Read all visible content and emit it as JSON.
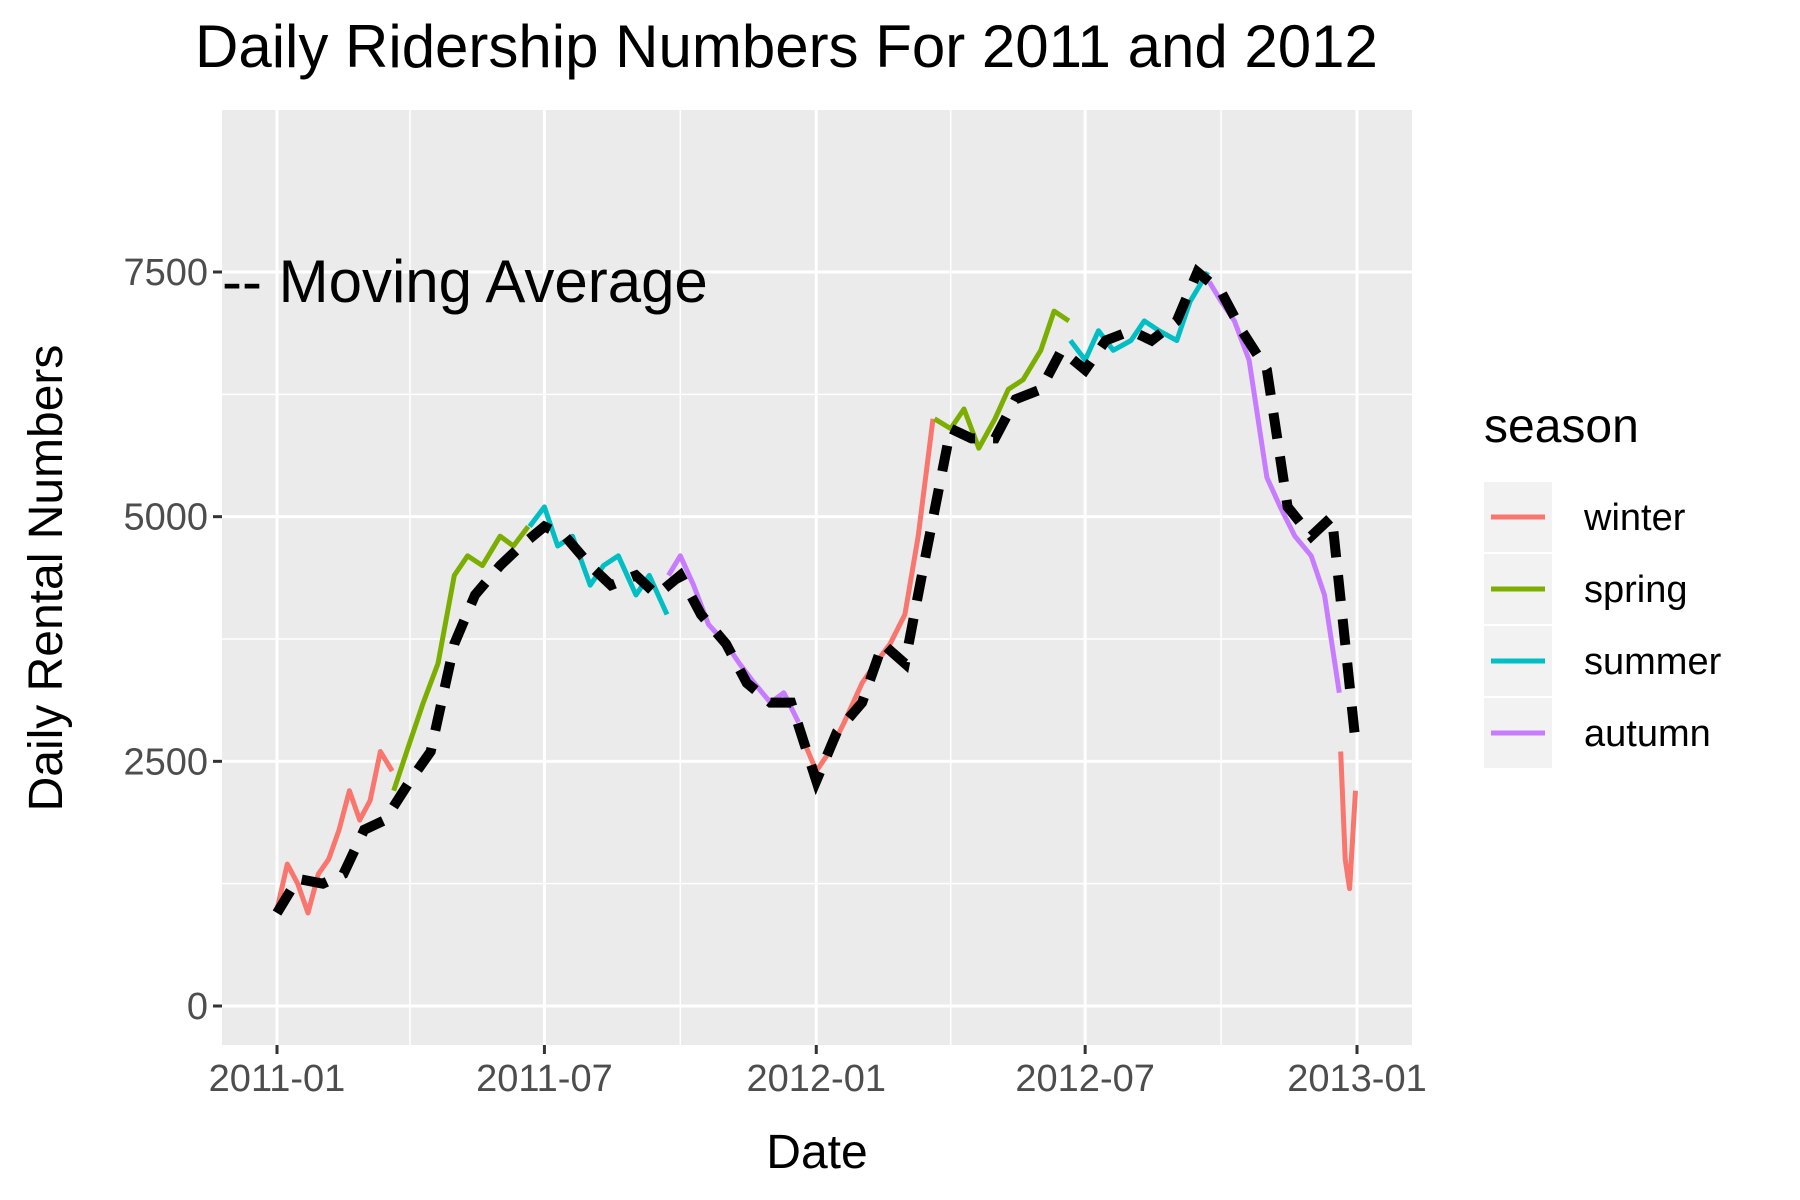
{
  "chart_data": {
    "type": "line",
    "title": "Daily Ridership Numbers For 2011 and 2012",
    "xlabel": "Date",
    "ylabel": "Daily Rental Numbers",
    "x_ticks": [
      "2011-01",
      "2011-07",
      "2012-01",
      "2012-07",
      "2013-01"
    ],
    "y_ticks": [
      "0",
      "2500",
      "5000",
      "7500"
    ],
    "xlim": [
      "2011-01-01",
      "2013-01-01"
    ],
    "ylim": [
      0,
      8700
    ],
    "grid": true,
    "annotation": "-- Moving Average",
    "legend": {
      "title": "season",
      "placement": "right",
      "entries": [
        {
          "label": "winter",
          "color": "#F8766D"
        },
        {
          "label": "spring",
          "color": "#7CAE00"
        },
        {
          "label": "summer",
          "color": "#00BFC4"
        },
        {
          "label": "autumn",
          "color": "#C77CFF"
        }
      ]
    },
    "series": [
      {
        "name": "winter",
        "color": "#F8766D",
        "x": [
          "2011-01-01",
          "2011-01-08",
          "2011-01-15",
          "2011-01-22",
          "2011-01-29",
          "2011-02-05",
          "2011-02-12",
          "2011-02-19",
          "2011-02-26",
          "2011-03-05",
          "2011-03-12",
          "2011-03-20"
        ],
        "y": [
          985,
          1450,
          1250,
          950,
          1350,
          1500,
          1800,
          2200,
          1900,
          2100,
          2600,
          2400
        ]
      },
      {
        "name": "spring",
        "color": "#7CAE00",
        "x": [
          "2011-03-21",
          "2011-04-01",
          "2011-04-10",
          "2011-04-20",
          "2011-05-01",
          "2011-05-10",
          "2011-05-20",
          "2011-06-01",
          "2011-06-10",
          "2011-06-20"
        ],
        "y": [
          2200,
          2700,
          3100,
          3500,
          4400,
          4600,
          4500,
          4800,
          4700,
          4900
        ]
      },
      {
        "name": "summer",
        "color": "#00BFC4",
        "x": [
          "2011-06-21",
          "2011-07-01",
          "2011-07-10",
          "2011-07-20",
          "2011-08-01",
          "2011-08-10",
          "2011-08-20",
          "2011-09-01",
          "2011-09-10",
          "2011-09-22"
        ],
        "y": [
          4900,
          5100,
          4700,
          4800,
          4300,
          4500,
          4600,
          4200,
          4400,
          4000
        ]
      },
      {
        "name": "autumn",
        "color": "#C77CFF",
        "x": [
          "2011-09-23",
          "2011-10-01",
          "2011-10-10",
          "2011-10-20",
          "2011-11-01",
          "2011-11-10",
          "2011-11-20",
          "2011-12-01",
          "2011-12-10",
          "2011-12-20"
        ],
        "y": [
          4400,
          4600,
          4300,
          3900,
          3700,
          3500,
          3300,
          3100,
          3200,
          2900
        ]
      },
      {
        "name": "winter",
        "color": "#F8766D",
        "x": [
          "2011-12-21",
          "2012-01-01",
          "2012-01-10",
          "2012-01-20",
          "2012-02-01",
          "2012-02-10",
          "2012-02-20",
          "2012-03-01",
          "2012-03-10",
          "2012-03-20"
        ],
        "y": [
          2800,
          2400,
          2600,
          2900,
          3300,
          3500,
          3700,
          4000,
          4800,
          6000
        ]
      },
      {
        "name": "spring",
        "color": "#7CAE00",
        "x": [
          "2012-03-21",
          "2012-04-01",
          "2012-04-10",
          "2012-04-20",
          "2012-05-01",
          "2012-05-10",
          "2012-05-20",
          "2012-06-01",
          "2012-06-10",
          "2012-06-20"
        ],
        "y": [
          6000,
          5900,
          6100,
          5700,
          6000,
          6300,
          6400,
          6700,
          7100,
          7000
        ]
      },
      {
        "name": "summer",
        "color": "#00BFC4",
        "x": [
          "2012-06-21",
          "2012-07-01",
          "2012-07-10",
          "2012-07-20",
          "2012-08-01",
          "2012-08-10",
          "2012-08-20",
          "2012-09-01",
          "2012-09-10",
          "2012-09-22"
        ],
        "y": [
          6800,
          6600,
          6900,
          6700,
          6800,
          7000,
          6900,
          6800,
          7200,
          7500
        ]
      },
      {
        "name": "autumn",
        "color": "#C77CFF",
        "x": [
          "2012-09-23",
          "2012-10-01",
          "2012-10-10",
          "2012-10-20",
          "2012-11-01",
          "2012-11-10",
          "2012-11-20",
          "2012-12-01",
          "2012-12-10",
          "2012-12-20"
        ],
        "y": [
          7400,
          7200,
          7000,
          6600,
          5400,
          5100,
          4800,
          4600,
          4200,
          3200
        ]
      },
      {
        "name": "winter",
        "color": "#F8766D",
        "x": [
          "2012-12-21",
          "2012-12-24",
          "2012-12-27",
          "2012-12-31"
        ],
        "y": [
          2600,
          1500,
          1200,
          2200
        ]
      }
    ],
    "moving_average": {
      "style": "dashed",
      "color": "#000000",
      "x": [
        "2011-01-01",
        "2011-01-15",
        "2011-02-01",
        "2011-02-15",
        "2011-03-01",
        "2011-03-15",
        "2011-04-01",
        "2011-04-15",
        "2011-05-01",
        "2011-05-15",
        "2011-06-01",
        "2011-06-15",
        "2011-07-01",
        "2011-07-15",
        "2011-08-01",
        "2011-08-15",
        "2011-09-01",
        "2011-09-15",
        "2011-10-01",
        "2011-10-15",
        "2011-11-01",
        "2011-11-15",
        "2011-12-01",
        "2011-12-15",
        "2012-01-01",
        "2012-01-15",
        "2012-02-01",
        "2012-02-15",
        "2012-03-01",
        "2012-03-15",
        "2012-04-01",
        "2012-04-15",
        "2012-05-01",
        "2012-05-15",
        "2012-06-01",
        "2012-06-15",
        "2012-07-01",
        "2012-07-15",
        "2012-08-01",
        "2012-08-15",
        "2012-09-01",
        "2012-09-15",
        "2012-10-01",
        "2012-10-15",
        "2012-11-01",
        "2012-11-15",
        "2012-12-01",
        "2012-12-15",
        "2012-12-31"
      ],
      "y": [
        950,
        1300,
        1250,
        1350,
        1800,
        1900,
        2300,
        2600,
        3700,
        4200,
        4500,
        4700,
        4900,
        4800,
        4500,
        4300,
        4400,
        4200,
        4400,
        4000,
        3700,
        3300,
        3100,
        3100,
        2300,
        2800,
        3100,
        3700,
        3500,
        4600,
        5900,
        5800,
        5800,
        6200,
        6300,
        6700,
        6500,
        6800,
        6900,
        6800,
        7000,
        7500,
        7300,
        6900,
        6500,
        5100,
        4800,
        5000,
        2700
      ]
    }
  }
}
